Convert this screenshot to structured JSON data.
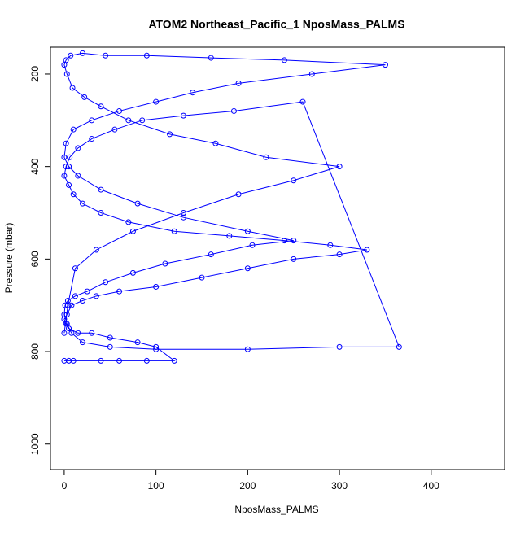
{
  "chart_data": {
    "type": "scatter-line",
    "title": "ATOM2 Northeast_Pacific_1 NposMass_PALMS",
    "x_label": "NposMass_PALMS",
    "y_label": "Pressure (mbar)",
    "xlim": [
      -15,
      480
    ],
    "xticks": [
      0,
      100,
      200,
      300,
      400
    ],
    "ylim": [
      1055,
      142
    ],
    "yticks": [
      200,
      400,
      600,
      800,
      1000
    ],
    "series": [
      {
        "color": "#0000ff",
        "x": [
          0,
          5,
          10,
          40,
          60,
          90,
          120,
          100,
          80,
          50,
          30,
          15,
          5,
          2,
          0,
          3,
          8,
          20,
          35,
          60,
          100,
          150,
          200,
          250,
          300,
          330,
          290,
          240,
          180,
          120,
          70,
          40,
          20,
          10,
          5,
          0,
          2,
          6,
          15,
          30,
          55,
          85,
          130,
          185,
          260,
          365,
          300,
          200,
          100,
          50,
          20,
          8,
          3,
          0,
          1,
          4,
          12,
          25,
          45,
          75,
          110,
          160,
          205,
          250,
          200,
          130,
          80,
          40,
          15,
          5,
          0,
          2,
          10,
          30,
          60,
          100,
          140,
          190,
          270,
          350,
          240,
          160,
          90,
          45,
          20,
          7,
          2,
          0,
          3,
          9,
          22,
          40,
          70,
          115,
          165,
          220,
          300,
          250,
          190,
          130,
          75,
          35,
          12,
          4,
          0
        ],
        "values": [
          820,
          820,
          820,
          820,
          820,
          820,
          820,
          790,
          780,
          770,
          760,
          760,
          750,
          740,
          730,
          720,
          700,
          690,
          680,
          670,
          660,
          640,
          620,
          600,
          590,
          580,
          570,
          560,
          550,
          540,
          520,
          500,
          480,
          460,
          440,
          420,
          400,
          380,
          360,
          340,
          320,
          300,
          290,
          280,
          260,
          790,
          790,
          795,
          795,
          790,
          780,
          760,
          740,
          720,
          700,
          690,
          680,
          670,
          650,
          630,
          610,
          590,
          570,
          560,
          540,
          510,
          480,
          450,
          420,
          400,
          380,
          350,
          320,
          300,
          280,
          260,
          240,
          220,
          200,
          180,
          170,
          165,
          160,
          160,
          155,
          160,
          170,
          180,
          200,
          230,
          250,
          270,
          300,
          330,
          350,
          380,
          400,
          430,
          460,
          500,
          540,
          580,
          620,
          700,
          760
        ]
      }
    ]
  }
}
